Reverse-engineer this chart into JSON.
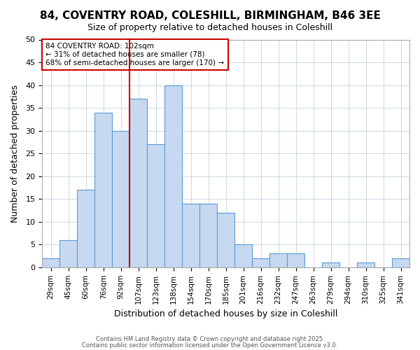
{
  "title": "84, COVENTRY ROAD, COLESHILL, BIRMINGHAM, B46 3EE",
  "subtitle": "Size of property relative to detached houses in Coleshill",
  "xlabel": "Distribution of detached houses by size in Coleshill",
  "ylabel": "Number of detached properties",
  "bar_labels": [
    "29sqm",
    "45sqm",
    "60sqm",
    "76sqm",
    "92sqm",
    "107sqm",
    "123sqm",
    "138sqm",
    "154sqm",
    "170sqm",
    "185sqm",
    "201sqm",
    "216sqm",
    "232sqm",
    "247sqm",
    "263sqm",
    "279sqm",
    "294sqm",
    "310sqm",
    "325sqm",
    "341sqm"
  ],
  "bar_values": [
    2,
    6,
    17,
    34,
    30,
    37,
    27,
    40,
    14,
    14,
    12,
    5,
    2,
    3,
    3,
    0,
    1,
    0,
    1,
    0,
    2
  ],
  "bar_color": "#c6d9f0",
  "bar_edge_color": "#5b9bd5",
  "vline_x_index": 5,
  "vline_color": "#cc0000",
  "ylim": [
    0,
    50
  ],
  "yticks": [
    0,
    5,
    10,
    15,
    20,
    25,
    30,
    35,
    40,
    45,
    50
  ],
  "annotation_title": "84 COVENTRY ROAD: 102sqm",
  "annotation_line1": "← 31% of detached houses are smaller (78)",
  "annotation_line2": "68% of semi-detached houses are larger (170) →",
  "annotation_box_color": "#ffffff",
  "annotation_box_edge": "#cc0000",
  "grid_color": "#d0dce8",
  "footer1": "Contains HM Land Registry data © Crown copyright and database right 2025.",
  "footer2": "Contains public sector information licensed under the Open Government Licence v3.0."
}
